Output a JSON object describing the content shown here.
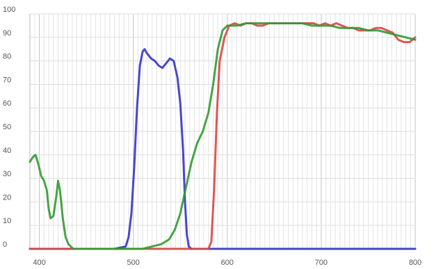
{
  "chart_data": {
    "type": "line",
    "title": "",
    "xlabel": "",
    "ylabel": "",
    "xlim": [
      390,
      800
    ],
    "ylim": [
      0,
      100
    ],
    "grid": true,
    "legend": "none",
    "x_ticks": [
      400,
      500,
      600,
      700,
      800
    ],
    "y_ticks": [
      0,
      10,
      20,
      30,
      40,
      50,
      60,
      70,
      80,
      90,
      100
    ],
    "series": [
      {
        "color": "#3333cc",
        "points": [
          [
            390,
            0
          ],
          [
            480,
            0
          ],
          [
            492,
            1
          ],
          [
            495,
            5
          ],
          [
            498,
            15
          ],
          [
            501,
            35
          ],
          [
            504,
            60
          ],
          [
            507,
            78
          ],
          [
            510,
            84
          ],
          [
            512,
            85
          ],
          [
            515,
            83
          ],
          [
            519,
            81
          ],
          [
            523,
            80
          ],
          [
            527,
            78
          ],
          [
            531,
            77
          ],
          [
            535,
            79
          ],
          [
            539,
            81
          ],
          [
            543,
            80
          ],
          [
            547,
            73
          ],
          [
            550,
            62
          ],
          [
            553,
            42
          ],
          [
            555,
            20
          ],
          [
            557,
            6
          ],
          [
            559,
            1
          ],
          [
            562,
            0
          ],
          [
            800,
            0
          ]
        ]
      },
      {
        "color": "#dd4444",
        "points": [
          [
            390,
            0
          ],
          [
            580,
            0
          ],
          [
            583,
            3
          ],
          [
            586,
            25
          ],
          [
            589,
            58
          ],
          [
            592,
            80
          ],
          [
            597,
            90
          ],
          [
            602,
            95
          ],
          [
            608,
            96
          ],
          [
            614,
            95
          ],
          [
            620,
            96
          ],
          [
            626,
            96
          ],
          [
            632,
            95
          ],
          [
            638,
            95
          ],
          [
            644,
            96
          ],
          [
            650,
            96
          ],
          [
            656,
            96
          ],
          [
            662,
            96
          ],
          [
            668,
            96
          ],
          [
            674,
            96
          ],
          [
            680,
            96
          ],
          [
            686,
            96
          ],
          [
            692,
            96
          ],
          [
            698,
            95
          ],
          [
            704,
            96
          ],
          [
            710,
            95
          ],
          [
            716,
            96
          ],
          [
            722,
            95
          ],
          [
            728,
            94
          ],
          [
            734,
            94
          ],
          [
            740,
            93
          ],
          [
            746,
            93
          ],
          [
            752,
            93
          ],
          [
            758,
            94
          ],
          [
            764,
            94
          ],
          [
            770,
            93
          ],
          [
            776,
            92
          ],
          [
            782,
            89
          ],
          [
            788,
            88
          ],
          [
            794,
            88
          ],
          [
            800,
            90
          ]
        ]
      },
      {
        "color": "#339933",
        "points": [
          [
            390,
            37
          ],
          [
            393,
            39
          ],
          [
            396,
            40
          ],
          [
            399,
            36
          ],
          [
            402,
            31
          ],
          [
            405,
            29
          ],
          [
            408,
            25
          ],
          [
            410,
            17
          ],
          [
            412,
            13
          ],
          [
            415,
            14
          ],
          [
            418,
            22
          ],
          [
            420,
            29
          ],
          [
            422,
            25
          ],
          [
            425,
            13
          ],
          [
            428,
            5
          ],
          [
            431,
            2
          ],
          [
            436,
            0
          ],
          [
            500,
            0
          ],
          [
            510,
            0
          ],
          [
            520,
            1
          ],
          [
            530,
            2
          ],
          [
            538,
            4
          ],
          [
            544,
            8
          ],
          [
            550,
            15
          ],
          [
            556,
            26
          ],
          [
            562,
            37
          ],
          [
            568,
            45
          ],
          [
            574,
            50
          ],
          [
            580,
            58
          ],
          [
            585,
            70
          ],
          [
            590,
            85
          ],
          [
            595,
            93
          ],
          [
            600,
            95
          ],
          [
            610,
            95
          ],
          [
            620,
            96
          ],
          [
            630,
            96
          ],
          [
            640,
            96
          ],
          [
            650,
            96
          ],
          [
            660,
            96
          ],
          [
            670,
            96
          ],
          [
            680,
            96
          ],
          [
            690,
            95
          ],
          [
            700,
            95
          ],
          [
            710,
            95
          ],
          [
            720,
            94
          ],
          [
            730,
            94
          ],
          [
            740,
            94
          ],
          [
            750,
            93
          ],
          [
            760,
            93
          ],
          [
            770,
            92
          ],
          [
            780,
            91
          ],
          [
            790,
            90
          ],
          [
            800,
            89
          ]
        ]
      }
    ]
  }
}
